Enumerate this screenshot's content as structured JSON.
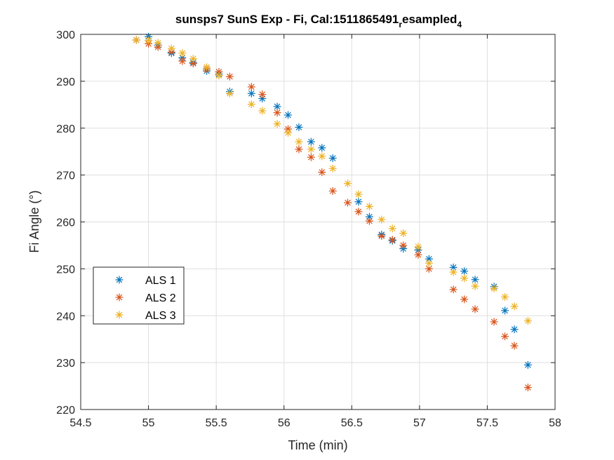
{
  "chart_data": {
    "type": "scatter",
    "title": "sunsps7 SunS Exp - Fi, Cal:1511865491",
    "title_sub": "r",
    "title_tail": "esampled",
    "title_sub2": "4",
    "xlabel": "Time (min)",
    "ylabel": "Fi Angle (°)",
    "xlim": [
      54.5,
      58
    ],
    "ylim": [
      220,
      300
    ],
    "xticks": [
      54.5,
      55,
      55.5,
      56,
      56.5,
      57,
      57.5,
      58
    ],
    "xtick_labels": [
      "54.5",
      "55",
      "55.5",
      "56",
      "56.5",
      "57",
      "57.5",
      "58"
    ],
    "yticks": [
      220,
      230,
      240,
      250,
      260,
      270,
      280,
      290,
      300
    ],
    "ytick_labels": [
      "220",
      "230",
      "240",
      "250",
      "260",
      "270",
      "280",
      "290",
      "300"
    ],
    "grid": true,
    "legend_position": "lower-left",
    "marker": "asterisk",
    "series": [
      {
        "name": "ALS 1",
        "color": "#0072bd",
        "x": [
          54.91,
          55.0,
          55.07,
          55.17,
          55.25,
          55.33,
          55.43,
          55.52,
          55.6,
          55.76,
          55.84,
          55.95,
          56.03,
          56.11,
          56.2,
          56.28,
          56.36,
          56.55,
          56.63,
          56.72,
          56.8,
          56.88,
          56.99,
          57.07,
          57.25,
          57.33,
          57.41,
          57.55,
          57.63,
          57.7,
          57.8
        ],
        "y": [
          298.8,
          299.5,
          297.7,
          296.0,
          295.0,
          294.0,
          292.2,
          291.5,
          287.8,
          287.4,
          286.3,
          284.6,
          282.8,
          280.2,
          277.1,
          275.8,
          273.6,
          264.3,
          261.1,
          257.3,
          256.0,
          254.3,
          254.0,
          252.1,
          250.3,
          249.5,
          247.7,
          246.2,
          241.1,
          237.1,
          229.5
        ]
      },
      {
        "name": "ALS 2",
        "color": "#d95319",
        "x": [
          54.91,
          55.0,
          55.07,
          55.17,
          55.25,
          55.33,
          55.43,
          55.52,
          55.6,
          55.76,
          55.84,
          55.95,
          56.03,
          56.11,
          56.2,
          56.28,
          56.36,
          56.47,
          56.55,
          56.63,
          56.72,
          56.8,
          56.88,
          56.99,
          57.07,
          57.25,
          57.33,
          57.41,
          57.55,
          57.63,
          57.7,
          57.8
        ],
        "y": [
          298.8,
          298.0,
          297.3,
          296.2,
          294.3,
          293.8,
          292.6,
          292.0,
          291.0,
          288.8,
          287.2,
          283.3,
          279.8,
          275.5,
          273.8,
          270.6,
          266.6,
          264.1,
          262.2,
          260.2,
          257.0,
          256.2,
          255.0,
          253.0,
          250.0,
          245.6,
          243.5,
          241.4,
          238.7,
          235.6,
          233.6,
          224.7
        ]
      },
      {
        "name": "ALS 3",
        "color": "#edb120",
        "x": [
          54.91,
          55.0,
          55.07,
          55.17,
          55.25,
          55.33,
          55.43,
          55.52,
          55.6,
          55.76,
          55.84,
          55.95,
          56.03,
          56.11,
          56.2,
          56.28,
          56.36,
          56.47,
          56.55,
          56.63,
          56.72,
          56.8,
          56.88,
          56.99,
          57.07,
          57.25,
          57.33,
          57.41,
          57.55,
          57.63,
          57.7,
          57.8
        ],
        "y": [
          298.8,
          298.7,
          298.2,
          297.0,
          296.0,
          294.8,
          293.0,
          291.2,
          287.4,
          285.1,
          283.7,
          280.9,
          279.0,
          277.1,
          275.5,
          274.0,
          271.4,
          268.2,
          265.9,
          263.3,
          260.5,
          258.6,
          257.6,
          254.7,
          251.2,
          249.3,
          248.0,
          246.3,
          245.8,
          244.0,
          242.0,
          238.9
        ]
      }
    ]
  }
}
